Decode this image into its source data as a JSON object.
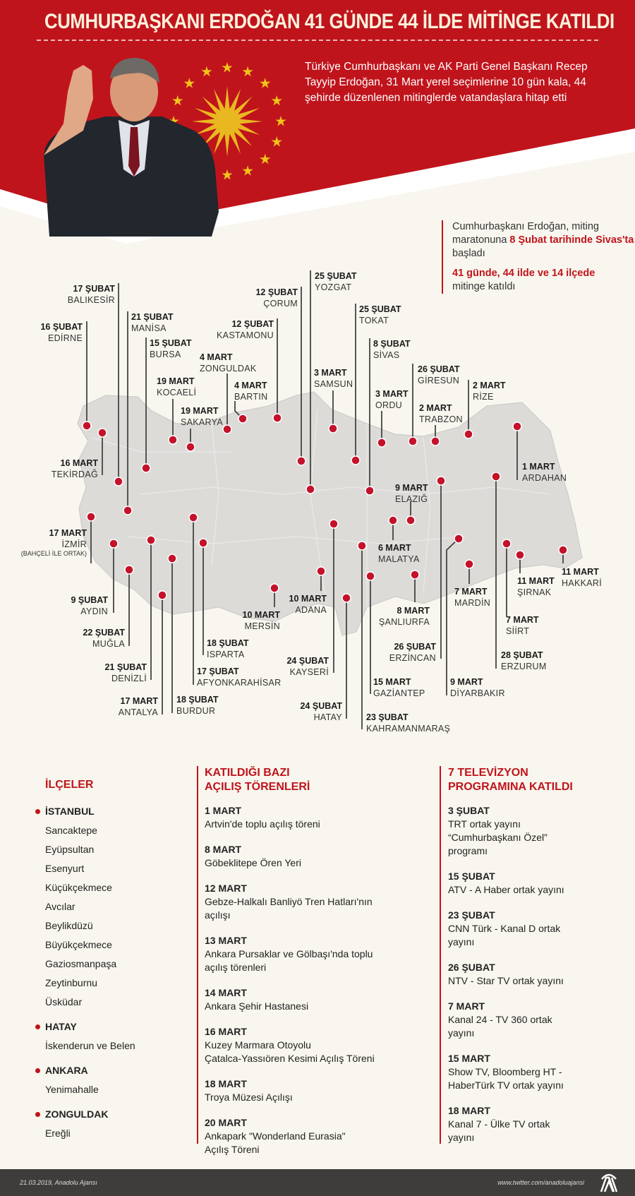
{
  "header": {
    "title": "CUMHURBAŞKANI ERDOĞAN 41 GÜNDE 44 İLDE MİTİNGE KATILDI",
    "intro": "Türkiye Cumhurbaşkanı ve AK Parti Genel Başkanı Recep Tayyip Erdoğan, 31 Mart yerel seçimlerine 10 gün kala, 44 şehirde düzenlenen mitinglerde vatandaşlara hitap etti"
  },
  "callout": {
    "line1_a": "Cumhurbaşkanı Erdoğan, miting maratonuna ",
    "line1_red": "8 Şubat tarihinde Sivas'ta",
    "line1_b": " başladı",
    "line2_red": "41 günde, 44 ilde ve 14 ilçede",
    "line2_b": "mitinge katıldı"
  },
  "colors": {
    "red": "#c0141c",
    "map": "#dcdbd8",
    "pin": "#c4122a",
    "footer": "#3e3d3b"
  },
  "pins": [
    {
      "date": "16 ŞUBAT",
      "city": "EDİRNE"
    },
    {
      "date": "16 MART",
      "city": "TEKİRDAĞ"
    },
    {
      "date": "17 ŞUBAT",
      "city": "BALIKESİR"
    },
    {
      "date": "21 ŞUBAT",
      "city": "MANİSA"
    },
    {
      "date": "15 ŞUBAT",
      "city": "BURSA"
    },
    {
      "date": "19 MART",
      "city": "KOCAELİ"
    },
    {
      "date": "19 MART",
      "city": "SAKARYA"
    },
    {
      "date": "4 MART",
      "city": "ZONGULDAK"
    },
    {
      "date": "4 MART",
      "city": "BARTIN"
    },
    {
      "date": "12 ŞUBAT",
      "city": "KASTAMONU"
    },
    {
      "date": "12 ŞUBAT",
      "city": "ÇORUM"
    },
    {
      "date": "25 ŞUBAT",
      "city": "YOZGAT"
    },
    {
      "date": "25 ŞUBAT",
      "city": "TOKAT"
    },
    {
      "date": "3 MART",
      "city": "SAMSUN"
    },
    {
      "date": "8 ŞUBAT",
      "city": "SİVAS"
    },
    {
      "date": "3 MART",
      "city": "ORDU"
    },
    {
      "date": "26 ŞUBAT",
      "city": "GİRESUN"
    },
    {
      "date": "2 MART",
      "city": "TRABZON"
    },
    {
      "date": "2 MART",
      "city": "RİZE"
    },
    {
      "date": "1 MART",
      "city": "ARDAHAN"
    },
    {
      "date": "28 ŞUBAT",
      "city": "ERZURUM"
    },
    {
      "date": "26 ŞUBAT",
      "city": "ERZİNCAN"
    },
    {
      "date": "9 MART",
      "city": "ELAZIĞ"
    },
    {
      "date": "6 MART",
      "city": "MALATYA"
    },
    {
      "date": "24 ŞUBAT",
      "city": "KAYSERİ"
    },
    {
      "date": "23 ŞUBAT",
      "city": "KAHRAMANMARAŞ"
    },
    {
      "date": "10 MART",
      "city": "ADANA"
    },
    {
      "date": "15 MART",
      "city": "GAZİANTEP"
    },
    {
      "date": "24 ŞUBAT",
      "city": "HATAY"
    },
    {
      "date": "8 MART",
      "city": "ŞANLIURFA"
    },
    {
      "date": "9 MART",
      "city": "DİYARBAKIR"
    },
    {
      "date": "7 MART",
      "city": "MARDİN"
    },
    {
      "date": "7 MART",
      "city": "SİİRT"
    },
    {
      "date": "11 MART",
      "city": "ŞIRNAK"
    },
    {
      "date": "11 MART",
      "city": "HAKKARİ"
    },
    {
      "date": "17 MART",
      "city": "İZMİR",
      "note": "(BAHÇELİ İLE ORTAK)"
    },
    {
      "date": "9 ŞUBAT",
      "city": "AYDIN"
    },
    {
      "date": "22 ŞUBAT",
      "city": "MUĞLA"
    },
    {
      "date": "21 ŞUBAT",
      "city": "DENİZLİ"
    },
    {
      "date": "17 MART",
      "city": "ANTALYA"
    },
    {
      "date": "18 ŞUBAT",
      "city": "BURDUR"
    },
    {
      "date": "17 ŞUBAT",
      "city": "AFYONKARAHİSAR"
    },
    {
      "date": "18 ŞUBAT",
      "city": "ISPARTA"
    },
    {
      "date": "10 MART",
      "city": "MERSİN"
    }
  ],
  "districts": {
    "heading": "İLÇELER",
    "groups": [
      {
        "city": "İSTANBUL",
        "items": [
          "Sancaktepe",
          "Eyüpsultan",
          "Esenyurt",
          "Küçükçekmece",
          "Avcılar",
          "Beylikdüzü",
          "Büyükçekmece",
          "Gaziosmanpaşa",
          "Zeytinburnu",
          "Üsküdar"
        ]
      },
      {
        "city": "HATAY",
        "items": [
          "İskenderun ve Belen"
        ]
      },
      {
        "city": "ANKARA",
        "items": [
          "Yenimahalle"
        ]
      },
      {
        "city": "ZONGULDAK",
        "items": [
          "Ereğli"
        ]
      }
    ]
  },
  "openings": {
    "heading": [
      "KATILDIĞI BAZI",
      "AÇILIŞ TÖRENLERİ"
    ],
    "entries": [
      {
        "date": "1 MART",
        "lines": [
          "Artvin'de toplu açılış töreni"
        ]
      },
      {
        "date": "8 MART",
        "lines": [
          "Göbeklitepe Ören Yeri"
        ]
      },
      {
        "date": "12 MART",
        "lines": [
          "Gebze-Halkalı Banliyö Tren Hatları'nın",
          "açılışı"
        ]
      },
      {
        "date": "13 MART",
        "lines": [
          "Ankara Pursaklar ve Gölbaşı'nda toplu",
          "açılış törenleri"
        ]
      },
      {
        "date": "14 MART",
        "lines": [
          "Ankara Şehir Hastanesi"
        ]
      },
      {
        "date": "16 MART",
        "lines": [
          "Kuzey Marmara Otoyolu",
          "Çatalca-Yassıören Kesimi Açılış Töreni"
        ]
      },
      {
        "date": "18 MART",
        "lines": [
          "Troya Müzesi Açılışı"
        ]
      },
      {
        "date": "20 MART",
        "lines": [
          "Ankapark \"Wonderland Eurasia\"",
          "Açılış Töreni"
        ]
      }
    ]
  },
  "tv": {
    "heading": [
      "7 TELEVİZYON",
      "PROGRAMINA KATILDI"
    ],
    "entries": [
      {
        "date": "3 ŞUBAT",
        "lines": [
          "TRT ortak yayını",
          "“Cumhurbaşkanı Özel”",
          "programı"
        ]
      },
      {
        "date": "15 ŞUBAT",
        "lines": [
          "ATV - A Haber ortak yayını"
        ]
      },
      {
        "date": "23 ŞUBAT",
        "lines": [
          "CNN Türk - Kanal D ortak",
          "yayını"
        ]
      },
      {
        "date": "26 ŞUBAT",
        "lines": [
          "NTV - Star TV ortak yayını"
        ]
      },
      {
        "date": "7 MART",
        "lines": [
          "Kanal 24 - TV 360 ortak",
          "yayını"
        ]
      },
      {
        "date": "15 MART",
        "lines": [
          "Show TV, Bloomberg HT -",
          "HaberTürk TV ortak yayını"
        ]
      },
      {
        "date": "18 MART",
        "lines": [
          "Kanal 7 - Ülke TV ortak",
          "yayını"
        ]
      }
    ]
  },
  "footer": {
    "left": "21.03.2019, Anadolu Ajansı",
    "right": "www.twitter.com/anadoluajansi",
    "logo": "AA"
  }
}
